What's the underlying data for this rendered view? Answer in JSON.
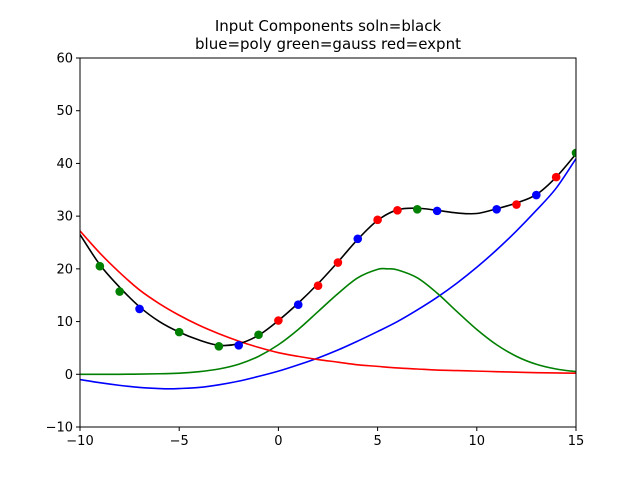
{
  "chart_data": {
    "type": "line",
    "title_line1": "Input Components soln=black",
    "title_line2": "blue=poly green=gauss red=expnt",
    "xlabel": "",
    "ylabel": "",
    "xlim": [
      -10,
      15
    ],
    "ylim": [
      -10,
      60
    ],
    "x_ticks": [
      -10,
      -5,
      0,
      5,
      10,
      15
    ],
    "y_ticks": [
      -10,
      0,
      10,
      20,
      30,
      40,
      50,
      60
    ],
    "grid": false,
    "series": [
      {
        "color": "#0000ff",
        "kind": "curve",
        "x": [
          -10,
          -9,
          -8,
          -7,
          -6,
          -5.5,
          -5,
          -4,
          -3,
          -2,
          -1,
          0,
          1,
          2,
          3,
          4,
          5,
          6,
          7,
          8,
          9,
          10,
          11,
          12,
          13,
          14,
          15
        ],
        "y": [
          -1.0,
          -1.6,
          -2.1,
          -2.5,
          -2.7,
          -2.75,
          -2.7,
          -2.5,
          -2.0,
          -1.3,
          -0.4,
          0.6,
          1.8,
          3.1,
          4.6,
          6.3,
          8.1,
          10.0,
          12.2,
          14.6,
          17.3,
          20.3,
          23.6,
          27.2,
          31.1,
          35.3,
          40.9
        ]
      },
      {
        "color": "#008000",
        "kind": "curve",
        "x": [
          -10,
          -8,
          -6,
          -5,
          -4,
          -3,
          -2,
          -1,
          0,
          1,
          2,
          3,
          4,
          5,
          5.5,
          6,
          7,
          8,
          9,
          10,
          11,
          12,
          13,
          14,
          15
        ],
        "y": [
          0,
          0,
          0.1,
          0.2,
          0.5,
          1.0,
          1.9,
          3.4,
          5.6,
          8.5,
          11.9,
          15.3,
          18.3,
          19.9,
          20.0,
          19.8,
          18.3,
          15.4,
          11.9,
          8.5,
          5.6,
          3.4,
          1.9,
          1.0,
          0.5
        ]
      },
      {
        "color": "#ff0000",
        "kind": "curve",
        "x": [
          -10,
          -9,
          -8,
          -7,
          -6,
          -5,
          -4,
          -3,
          -2,
          -1,
          0,
          1,
          2,
          3,
          4,
          5,
          6,
          7,
          8,
          9,
          10,
          11,
          12,
          13,
          14,
          15
        ],
        "y": [
          27.2,
          23.0,
          19.3,
          16.0,
          13.4,
          11.2,
          9.3,
          7.7,
          6.3,
          5.1,
          4.1,
          3.4,
          2.8,
          2.3,
          1.8,
          1.5,
          1.2,
          1.0,
          0.8,
          0.7,
          0.6,
          0.5,
          0.4,
          0.3,
          0.25,
          0.2
        ]
      },
      {
        "color": "#000000",
        "kind": "curve",
        "x": [
          -10,
          -9,
          -8,
          -7,
          -6,
          -5,
          -4,
          -3,
          -2,
          -1,
          0,
          1,
          2,
          3,
          4,
          5,
          6,
          7,
          8,
          9,
          10,
          11,
          12,
          13,
          14,
          15
        ],
        "y": [
          26.5,
          20.8,
          16.5,
          12.8,
          10.0,
          8.0,
          6.5,
          5.5,
          5.8,
          7.4,
          10.2,
          13.5,
          17.2,
          21.3,
          25.6,
          29.2,
          31.2,
          31.5,
          31.1,
          30.6,
          30.5,
          31.4,
          32.5,
          34.1,
          37.4,
          41.8
        ]
      },
      {
        "color": "#0000ff",
        "kind": "points",
        "x": [
          -7,
          -2,
          1,
          4,
          8,
          11,
          13
        ],
        "y": [
          12.4,
          5.5,
          13.2,
          25.7,
          31.0,
          31.3,
          34.0
        ]
      },
      {
        "color": "#008000",
        "kind": "points",
        "x": [
          -9,
          -8,
          -5,
          -3,
          -1,
          7,
          15
        ],
        "y": [
          20.5,
          15.7,
          8.0,
          5.3,
          7.5,
          31.3,
          42.0
        ]
      },
      {
        "color": "#ff0000",
        "kind": "points",
        "x": [
          0,
          2,
          3,
          5,
          6,
          12,
          14
        ],
        "y": [
          10.2,
          16.8,
          21.2,
          29.3,
          31.1,
          32.2,
          37.4
        ]
      }
    ]
  }
}
